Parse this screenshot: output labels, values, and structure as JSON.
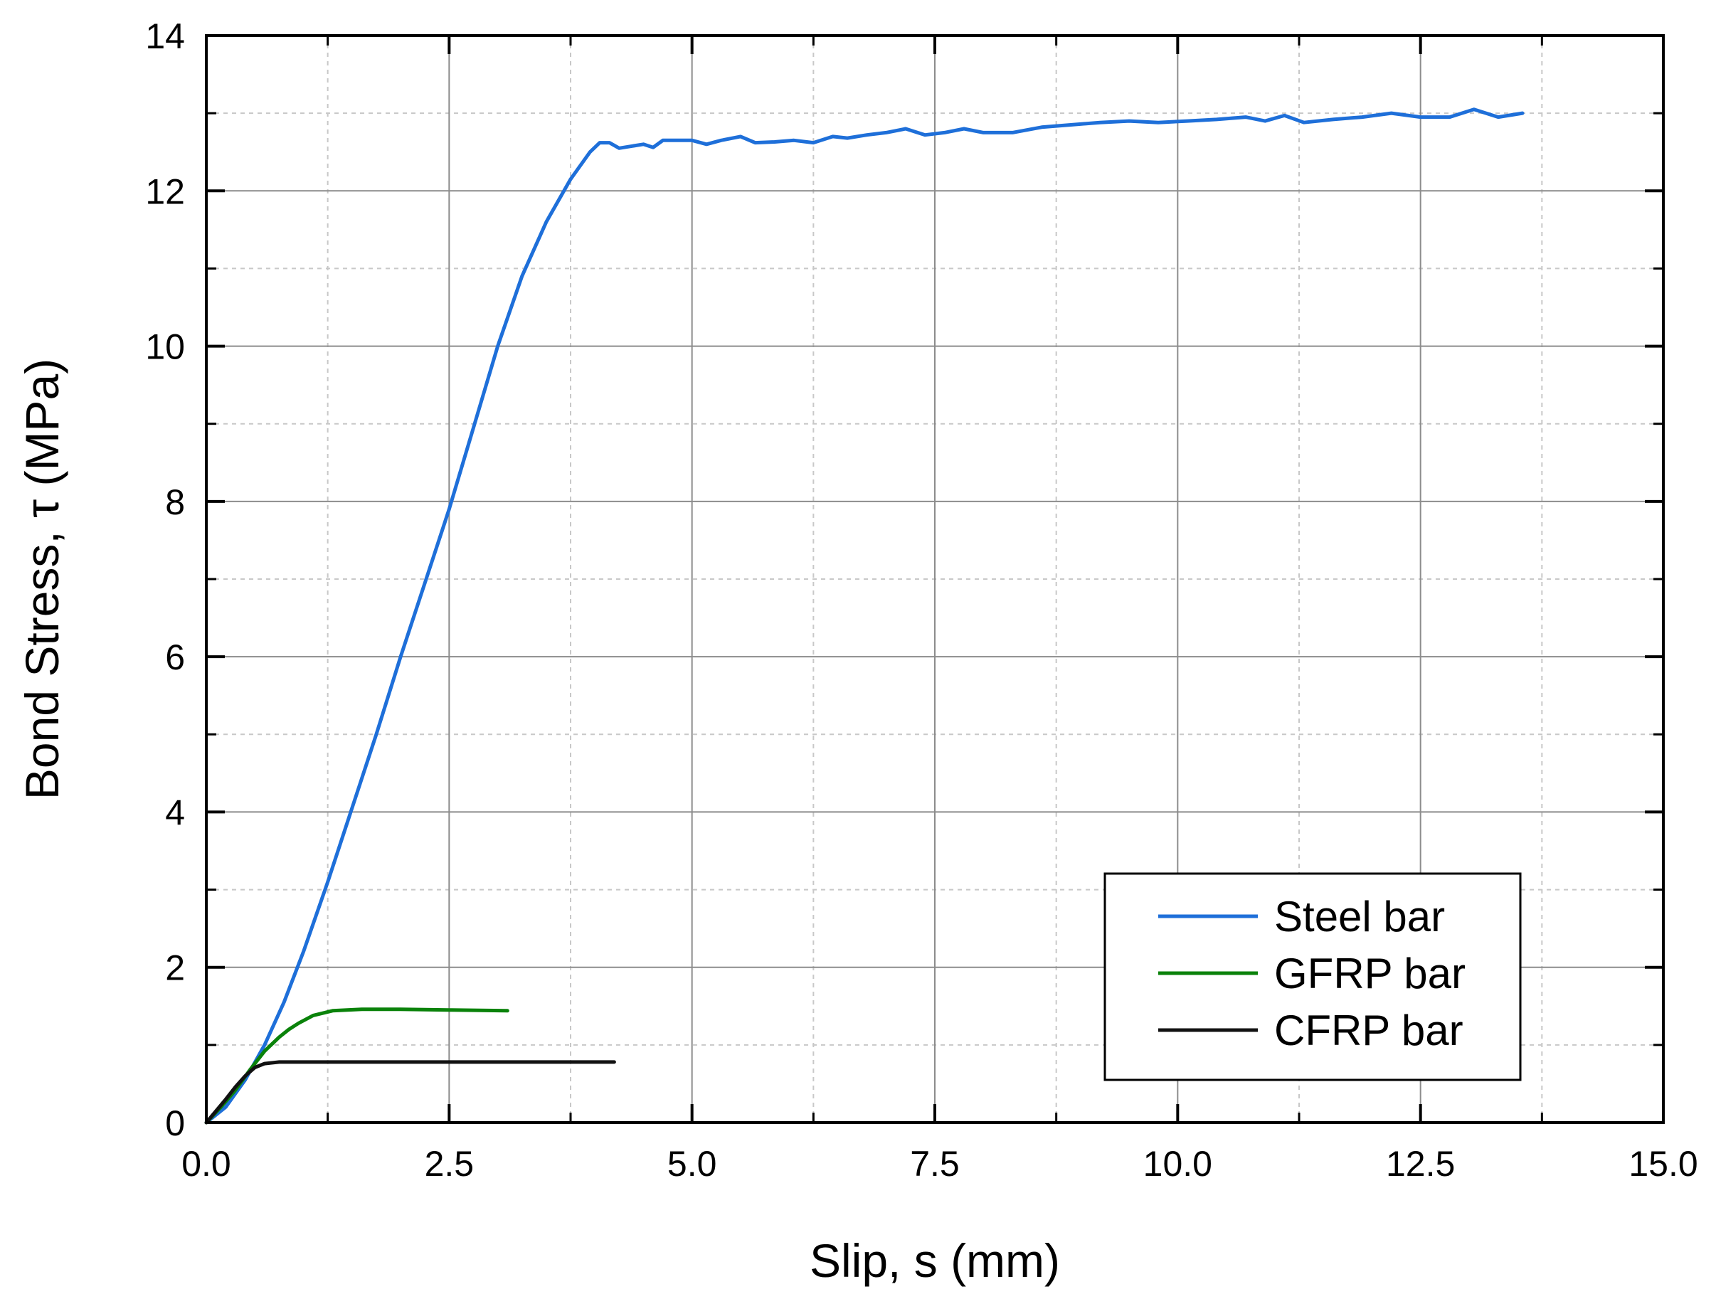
{
  "chart_data": {
    "type": "line",
    "xlabel": "Slip, s (mm)",
    "ylabel": "Bond Stress, τ (MPa)",
    "xlim": [
      0,
      15
    ],
    "ylim": [
      0,
      14
    ],
    "xticks": [
      "0.0",
      "2.5",
      "5.0",
      "7.5",
      "10.0",
      "12.5",
      "15.0"
    ],
    "yticks": [
      "0",
      "2",
      "4",
      "6",
      "8",
      "10",
      "12",
      "14"
    ],
    "grid": true,
    "legend_position": "bottom-right",
    "series": [
      {
        "name": "Steel bar",
        "color": "#1e6fd9",
        "points": [
          [
            0,
            0
          ],
          [
            0.2,
            0.2
          ],
          [
            0.4,
            0.55
          ],
          [
            0.6,
            1.0
          ],
          [
            0.8,
            1.55
          ],
          [
            1.0,
            2.2
          ],
          [
            1.25,
            3.1
          ],
          [
            1.5,
            4.05
          ],
          [
            1.75,
            5.0
          ],
          [
            2.0,
            6.0
          ],
          [
            2.25,
            6.95
          ],
          [
            2.5,
            7.9
          ],
          [
            2.75,
            8.95
          ],
          [
            3.0,
            10.0
          ],
          [
            3.25,
            10.9
          ],
          [
            3.5,
            11.6
          ],
          [
            3.75,
            12.15
          ],
          [
            3.95,
            12.5
          ],
          [
            4.05,
            12.62
          ],
          [
            4.15,
            12.62
          ],
          [
            4.25,
            12.55
          ],
          [
            4.4,
            12.58
          ],
          [
            4.5,
            12.6
          ],
          [
            4.6,
            12.56
          ],
          [
            4.7,
            12.65
          ],
          [
            4.85,
            12.65
          ],
          [
            5.0,
            12.65
          ],
          [
            5.15,
            12.6
          ],
          [
            5.3,
            12.65
          ],
          [
            5.5,
            12.7
          ],
          [
            5.65,
            12.62
          ],
          [
            5.85,
            12.63
          ],
          [
            6.05,
            12.65
          ],
          [
            6.25,
            12.62
          ],
          [
            6.45,
            12.7
          ],
          [
            6.6,
            12.68
          ],
          [
            6.8,
            12.72
          ],
          [
            7.0,
            12.75
          ],
          [
            7.2,
            12.8
          ],
          [
            7.4,
            12.72
          ],
          [
            7.6,
            12.75
          ],
          [
            7.8,
            12.8
          ],
          [
            8.0,
            12.75
          ],
          [
            8.3,
            12.75
          ],
          [
            8.6,
            12.82
          ],
          [
            8.9,
            12.85
          ],
          [
            9.2,
            12.88
          ],
          [
            9.5,
            12.9
          ],
          [
            9.8,
            12.88
          ],
          [
            10.1,
            12.9
          ],
          [
            10.4,
            12.92
          ],
          [
            10.7,
            12.95
          ],
          [
            10.9,
            12.9
          ],
          [
            11.1,
            12.97
          ],
          [
            11.3,
            12.88
          ],
          [
            11.6,
            12.92
          ],
          [
            11.9,
            12.95
          ],
          [
            12.2,
            13.0
          ],
          [
            12.5,
            12.95
          ],
          [
            12.8,
            12.95
          ],
          [
            13.05,
            13.05
          ],
          [
            13.3,
            12.95
          ],
          [
            13.55,
            13.0
          ]
        ]
      },
      {
        "name": "GFRP bar",
        "color": "#0a820a",
        "points": [
          [
            0,
            0
          ],
          [
            0.15,
            0.2
          ],
          [
            0.3,
            0.42
          ],
          [
            0.45,
            0.68
          ],
          [
            0.6,
            0.92
          ],
          [
            0.75,
            1.1
          ],
          [
            0.85,
            1.2
          ],
          [
            0.95,
            1.28
          ],
          [
            1.1,
            1.38
          ],
          [
            1.3,
            1.44
          ],
          [
            1.6,
            1.46
          ],
          [
            2.0,
            1.46
          ],
          [
            2.5,
            1.45
          ],
          [
            3.1,
            1.44
          ]
        ]
      },
      {
        "name": "CFRP bar",
        "color": "#111111",
        "points": [
          [
            0,
            0
          ],
          [
            0.1,
            0.15
          ],
          [
            0.2,
            0.3
          ],
          [
            0.3,
            0.46
          ],
          [
            0.4,
            0.6
          ],
          [
            0.5,
            0.71
          ],
          [
            0.6,
            0.76
          ],
          [
            0.75,
            0.78
          ],
          [
            1.2,
            0.78
          ],
          [
            2.0,
            0.78
          ],
          [
            3.0,
            0.78
          ],
          [
            4.2,
            0.78
          ]
        ]
      }
    ]
  }
}
